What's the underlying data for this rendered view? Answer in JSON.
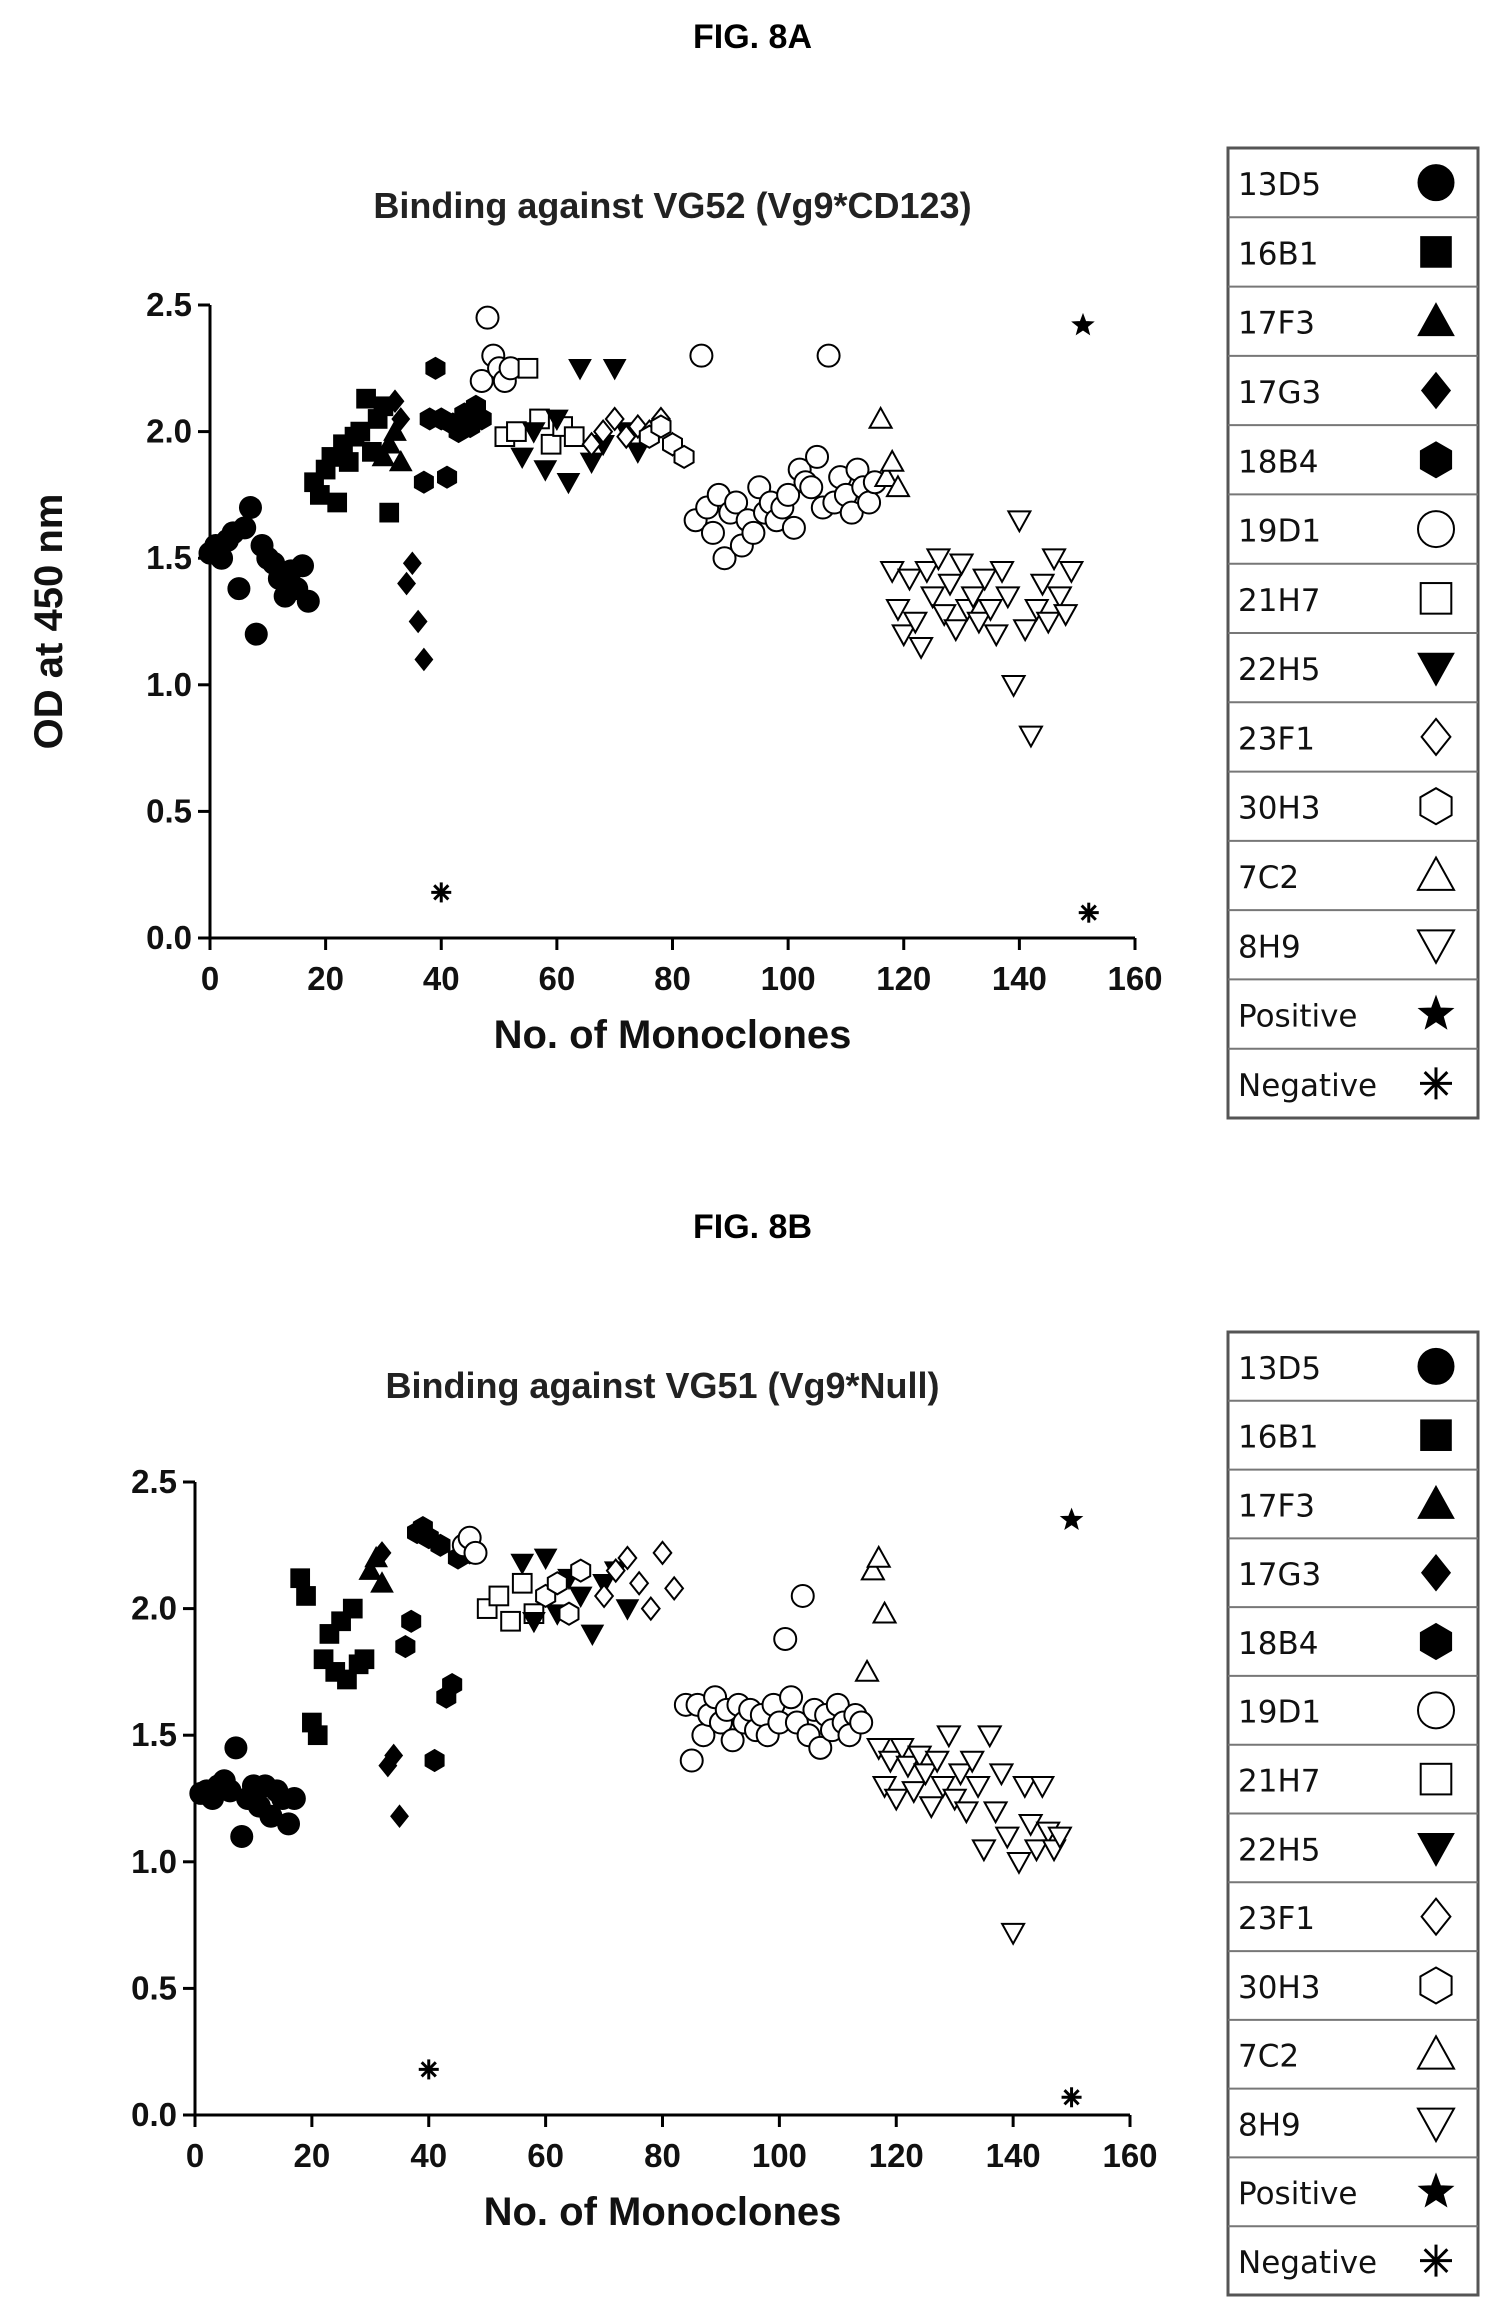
{
  "figures": [
    {
      "label": "FIG. 8A"
    },
    {
      "label": "FIG. 8B"
    }
  ],
  "chart_data": [
    {
      "type": "scatter",
      "title": "Binding against VG52 (Vg9*CD123)",
      "xlabel": "No. of Monoclones",
      "ylabel": "OD at 450 nm",
      "xlim": [
        0,
        160
      ],
      "ylim": [
        0,
        2.5
      ],
      "xticks": [
        "0",
        "20",
        "40",
        "60",
        "80",
        "100",
        "120",
        "140",
        "160"
      ],
      "yticks": [
        "0.0",
        "0.5",
        "1.0",
        "1.5",
        "2.0",
        "2.5"
      ],
      "grid": false,
      "legend_position": "right",
      "series": [
        {
          "name": "13D5",
          "marker": "circle",
          "x": [
            0,
            1,
            2,
            3,
            4,
            5,
            6,
            7,
            8,
            9,
            10,
            11,
            12,
            13,
            14,
            15,
            16,
            17
          ],
          "y": [
            1.52,
            1.55,
            1.5,
            1.57,
            1.6,
            1.38,
            1.62,
            1.7,
            1.2,
            1.55,
            1.5,
            1.48,
            1.42,
            1.35,
            1.45,
            1.38,
            1.47,
            1.33
          ]
        },
        {
          "name": "16B1",
          "marker": "square",
          "x": [
            18,
            19,
            20,
            21,
            22,
            23,
            24,
            25,
            26,
            27,
            28,
            29,
            30,
            31
          ],
          "y": [
            1.8,
            1.75,
            1.85,
            1.9,
            1.72,
            1.95,
            1.88,
            1.98,
            2.0,
            2.13,
            1.92,
            2.05,
            2.1,
            1.68
          ]
        },
        {
          "name": "17F3",
          "marker": "triangle-up",
          "x": [
            30,
            31,
            32,
            33
          ],
          "y": [
            1.9,
            1.95,
            2.0,
            1.88
          ]
        },
        {
          "name": "17G3",
          "marker": "diamond",
          "x": [
            32,
            33,
            34,
            35,
            36,
            37
          ],
          "y": [
            2.12,
            2.05,
            1.4,
            1.48,
            1.25,
            1.1
          ]
        },
        {
          "name": "18B4",
          "marker": "hexagon",
          "x": [
            37,
            38,
            39,
            40,
            41,
            42,
            43,
            44,
            45,
            46,
            47
          ],
          "y": [
            1.8,
            2.05,
            2.25,
            2.05,
            1.82,
            2.03,
            2.0,
            2.07,
            2.02,
            2.1,
            2.05
          ]
        },
        {
          "name": "19D1",
          "marker": "circle-open",
          "x": [
            47,
            48,
            49,
            50,
            51,
            52,
            84,
            85,
            86,
            87,
            88,
            89,
            90,
            91,
            92,
            93,
            94,
            95,
            96,
            97,
            98,
            99,
            100,
            101,
            102,
            103,
            104,
            105,
            106,
            107,
            108,
            109,
            110,
            111,
            112,
            113,
            114,
            115
          ],
          "y": [
            2.2,
            2.45,
            2.3,
            2.25,
            2.2,
            2.25,
            1.65,
            2.3,
            1.7,
            1.6,
            1.75,
            1.5,
            1.68,
            1.72,
            1.55,
            1.65,
            1.6,
            1.78,
            1.68,
            1.72,
            1.65,
            1.7,
            1.75,
            1.62,
            1.85,
            1.8,
            1.78,
            1.9,
            1.7,
            2.3,
            1.72,
            1.82,
            1.75,
            1.68,
            1.85,
            1.78,
            1.72,
            1.8
          ]
        },
        {
          "name": "21H7",
          "marker": "square-open",
          "x": [
            51,
            53,
            55,
            57,
            59,
            61,
            63
          ],
          "y": [
            1.98,
            2.0,
            2.25,
            2.05,
            1.95,
            2.02,
            1.98
          ]
        },
        {
          "name": "22H5",
          "marker": "triangle-down",
          "x": [
            54,
            56,
            58,
            60,
            62,
            64,
            66,
            68,
            70,
            72,
            74
          ],
          "y": [
            1.9,
            2.0,
            1.85,
            2.05,
            1.8,
            2.25,
            1.88,
            1.95,
            2.25,
            2.0,
            1.92
          ]
        },
        {
          "name": "23F1",
          "marker": "diamond-open",
          "x": [
            66,
            68,
            70,
            72,
            74,
            76,
            78,
            80
          ],
          "y": [
            1.95,
            2.0,
            2.05,
            1.98,
            2.02,
            2.0,
            2.05,
            1.95
          ]
        },
        {
          "name": "30H3",
          "marker": "hexagon-open",
          "x": [
            76,
            78,
            80,
            82
          ],
          "y": [
            1.98,
            2.02,
            1.95,
            1.9
          ]
        },
        {
          "name": "7C2",
          "marker": "triangle-up-open",
          "x": [
            116,
            117,
            118,
            119
          ],
          "y": [
            2.05,
            1.82,
            1.88,
            1.78
          ]
        },
        {
          "name": "8H9",
          "marker": "triangle-down-open",
          "x": [
            118,
            119,
            120,
            121,
            122,
            123,
            124,
            125,
            126,
            127,
            128,
            129,
            130,
            131,
            132,
            133,
            134,
            135,
            136,
            137,
            138,
            139,
            140,
            141,
            142,
            143,
            144,
            145,
            146,
            147,
            148,
            149
          ],
          "y": [
            1.45,
            1.3,
            1.2,
            1.42,
            1.25,
            1.15,
            1.45,
            1.35,
            1.5,
            1.28,
            1.4,
            1.22,
            1.48,
            1.3,
            1.35,
            1.25,
            1.42,
            1.3,
            1.2,
            1.45,
            1.35,
            1.0,
            1.65,
            1.22,
            0.8,
            1.3,
            1.4,
            1.25,
            1.5,
            1.35,
            1.28,
            1.45
          ]
        },
        {
          "name": "Positive",
          "marker": "star",
          "x": [
            151
          ],
          "y": [
            2.42
          ]
        },
        {
          "name": "Negative",
          "marker": "asterisk",
          "x": [
            40,
            152
          ],
          "y": [
            0.18,
            0.1
          ]
        }
      ]
    },
    {
      "type": "scatter",
      "title": "Binding against VG51 (Vg9*Null)",
      "xlabel": "No. of Monoclones",
      "ylabel": "",
      "xlim": [
        0,
        160
      ],
      "ylim": [
        0,
        2.5
      ],
      "xticks": [
        "0",
        "20",
        "40",
        "60",
        "80",
        "100",
        "120",
        "140",
        "160"
      ],
      "yticks": [
        "0.0",
        "0.5",
        "1.0",
        "1.5",
        "2.0",
        "2.5"
      ],
      "grid": false,
      "legend_position": "right",
      "series": [
        {
          "name": "13D5",
          "marker": "circle",
          "x": [
            1,
            2,
            3,
            4,
            5,
            6,
            7,
            8,
            9,
            10,
            11,
            12,
            13,
            14,
            15,
            16,
            17
          ],
          "y": [
            1.27,
            1.28,
            1.25,
            1.3,
            1.32,
            1.28,
            1.45,
            1.1,
            1.25,
            1.3,
            1.22,
            1.3,
            1.18,
            1.28,
            1.25,
            1.15,
            1.25
          ]
        },
        {
          "name": "16B1",
          "marker": "square",
          "x": [
            18,
            19,
            20,
            21,
            22,
            23,
            24,
            25,
            26,
            27,
            28,
            29
          ],
          "y": [
            2.12,
            2.05,
            1.55,
            1.5,
            1.8,
            1.9,
            1.75,
            1.95,
            1.72,
            2.0,
            1.78,
            1.8
          ]
        },
        {
          "name": "17F3",
          "marker": "triangle-up",
          "x": [
            30,
            31,
            32
          ],
          "y": [
            2.15,
            2.2,
            2.1
          ]
        },
        {
          "name": "17G3",
          "marker": "diamond",
          "x": [
            32,
            33,
            34,
            35
          ],
          "y": [
            2.22,
            1.38,
            1.42,
            1.18
          ]
        },
        {
          "name": "18B4",
          "marker": "hexagon",
          "x": [
            36,
            37,
            38,
            39,
            40,
            41,
            42,
            43,
            44,
            45,
            46,
            47
          ],
          "y": [
            1.85,
            1.95,
            2.3,
            2.32,
            2.28,
            1.4,
            2.25,
            1.65,
            1.7,
            2.2,
            2.25,
            2.22
          ]
        },
        {
          "name": "19D1",
          "marker": "circle-open",
          "x": [
            46,
            47,
            48,
            84,
            85,
            86,
            87,
            88,
            89,
            90,
            91,
            92,
            93,
            94,
            95,
            96,
            97,
            98,
            99,
            100,
            101,
            102,
            103,
            104,
            105,
            106,
            107,
            108,
            109,
            110,
            111,
            112,
            113,
            114
          ],
          "y": [
            2.25,
            2.28,
            2.22,
            1.62,
            1.4,
            1.62,
            1.5,
            1.58,
            1.65,
            1.55,
            1.6,
            1.48,
            1.62,
            1.55,
            1.6,
            1.52,
            1.58,
            1.5,
            1.62,
            1.55,
            1.88,
            1.65,
            1.55,
            2.05,
            1.5,
            1.6,
            1.45,
            1.58,
            1.52,
            1.62,
            1.55,
            1.5,
            1.58,
            1.55
          ]
        },
        {
          "name": "21H7",
          "marker": "square-open",
          "x": [
            50,
            52,
            54,
            56,
            58
          ],
          "y": [
            2.0,
            2.05,
            1.95,
            2.1,
            1.98
          ]
        },
        {
          "name": "22H5",
          "marker": "triangle-down",
          "x": [
            56,
            58,
            60,
            62,
            64,
            66,
            68,
            70,
            72,
            74
          ],
          "y": [
            2.18,
            1.95,
            2.2,
            1.98,
            2.12,
            2.05,
            1.9,
            2.1,
            2.15,
            2.0
          ]
        },
        {
          "name": "23F1",
          "marker": "diamond-open",
          "x": [
            70,
            72,
            74,
            76,
            78,
            80,
            82
          ],
          "y": [
            2.05,
            2.15,
            2.2,
            2.1,
            2.0,
            2.22,
            2.08
          ]
        },
        {
          "name": "30H3",
          "marker": "hexagon-open",
          "x": [
            60,
            62,
            64,
            66
          ],
          "y": [
            2.05,
            2.1,
            1.98,
            2.15
          ]
        },
        {
          "name": "7C2",
          "marker": "triangle-up-open",
          "x": [
            115,
            116,
            117,
            118
          ],
          "y": [
            1.75,
            2.15,
            2.2,
            1.98
          ]
        },
        {
          "name": "8H9",
          "marker": "triangle-down-open",
          "x": [
            117,
            118,
            119,
            120,
            121,
            122,
            123,
            124,
            125,
            126,
            127,
            128,
            129,
            130,
            131,
            132,
            133,
            134,
            135,
            136,
            137,
            138,
            139,
            140,
            141,
            142,
            143,
            144,
            145,
            146,
            147,
            148
          ],
          "y": [
            1.45,
            1.3,
            1.4,
            1.25,
            1.45,
            1.38,
            1.28,
            1.42,
            1.35,
            1.22,
            1.4,
            1.3,
            1.5,
            1.25,
            1.35,
            1.2,
            1.4,
            1.3,
            1.05,
            1.5,
            1.2,
            1.35,
            1.1,
            0.72,
            1.0,
            1.3,
            1.15,
            1.05,
            1.3,
            1.12,
            1.05,
            1.1
          ]
        },
        {
          "name": "Positive",
          "marker": "star",
          "x": [
            150
          ],
          "y": [
            2.35
          ]
        },
        {
          "name": "Negative",
          "marker": "asterisk",
          "x": [
            40,
            150
          ],
          "y": [
            0.18,
            0.07
          ]
        }
      ]
    }
  ]
}
